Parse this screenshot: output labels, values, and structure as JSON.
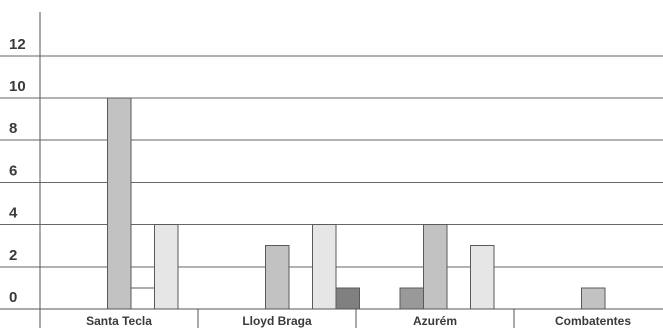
{
  "chart_data": {
    "type": "bar",
    "categories": [
      "Santa Tecla",
      "Lloyd Braga",
      "Azurém",
      "Combatentes"
    ],
    "series": [
      {
        "values": [
          0,
          0,
          1,
          0
        ],
        "color": "#999999"
      },
      {
        "values": [
          10,
          3,
          4,
          1
        ],
        "color": "#c2c2c2"
      },
      {
        "values": [
          1,
          0,
          0,
          0
        ],
        "color": "#ffffff"
      },
      {
        "values": [
          4,
          4,
          3,
          0
        ],
        "color": "#e6e6e6"
      },
      {
        "values": [
          0,
          1,
          0,
          0
        ],
        "color": "#808080"
      }
    ],
    "ylim": [
      0,
      13
    ],
    "yticks": [
      0,
      2,
      4,
      6,
      8,
      10,
      12
    ],
    "ytick_labels": [
      "0",
      "2",
      "4",
      "6",
      "8",
      "10",
      "12"
    ],
    "grid": true,
    "bar_stroke_color": "#5a5a5a",
    "grid_color": "#666666",
    "axis_color": "#555555",
    "text_color": "#3a3a3a"
  }
}
